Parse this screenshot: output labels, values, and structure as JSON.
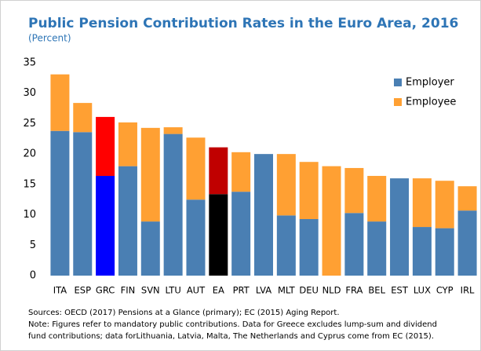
{
  "chart_data": {
    "type": "stacked_bar",
    "title": "Public Pension Contribution Rates in the Euro Area, 2016",
    "subtitle": "(Percent)",
    "categories": [
      "ITA",
      "ESP",
      "GRC",
      "FIN",
      "SVN",
      "LTU",
      "AUT",
      "EA",
      "PRT",
      "LVA",
      "MLT",
      "DEU",
      "NLD",
      "FRA",
      "BEL",
      "EST",
      "LUX",
      "CYP",
      "IRL"
    ],
    "series": [
      {
        "name": "Employer",
        "color": "#4a7fb3",
        "colors": [
          "#4a7fb3",
          "#4a7fb3",
          "#0000ff",
          "#4a7fb3",
          "#4a7fb3",
          "#4a7fb3",
          "#4a7fb3",
          "#000000",
          "#4a7fb3",
          "#4a7fb3",
          "#4a7fb3",
          "#4a7fb3",
          "#4a7fb3",
          "#4a7fb3",
          "#4a7fb3",
          "#4a7fb3",
          "#4a7fb3",
          "#4a7fb3",
          "#4a7fb3"
        ],
        "values": [
          23.8,
          23.6,
          16.4,
          18.0,
          8.9,
          23.3,
          12.5,
          13.4,
          13.8,
          20.0,
          9.9,
          9.3,
          0,
          10.3,
          8.9,
          16.0,
          8.0,
          7.8,
          10.7
        ]
      },
      {
        "name": "Employee",
        "color": "#ffa033",
        "colors": [
          "#ffa033",
          "#ffa033",
          "#ff0000",
          "#ffa033",
          "#ffa033",
          "#ffa033",
          "#ffa033",
          "#c00000",
          "#ffa033",
          "#ffa033",
          "#ffa033",
          "#ffa033",
          "#ffa033",
          "#ffa033",
          "#ffa033",
          "#ffa033",
          "#ffa033",
          "#ffa033",
          "#ffa033"
        ],
        "values": [
          9.3,
          4.8,
          9.7,
          7.2,
          15.4,
          1.1,
          10.2,
          7.7,
          6.5,
          0,
          10.1,
          9.4,
          18.0,
          7.4,
          7.5,
          0,
          8.0,
          7.8,
          4.0
        ]
      }
    ],
    "ylim": [
      0,
      35
    ],
    "yticks": [
      0,
      5,
      10,
      15,
      20,
      25,
      30,
      35
    ],
    "legend": "upper right",
    "notes": [
      "Sources: OECD (2017) Pensions at a Glance (primary); EC (2015) Aging Report.",
      "Note: Figures refer to mandatory public contributions. Data for Greece excludes lump-sum and dividend",
      "fund contributions; data forLithuania, Latvia, Malta, The Netherlands and Cyprus come from EC (2015)."
    ]
  }
}
